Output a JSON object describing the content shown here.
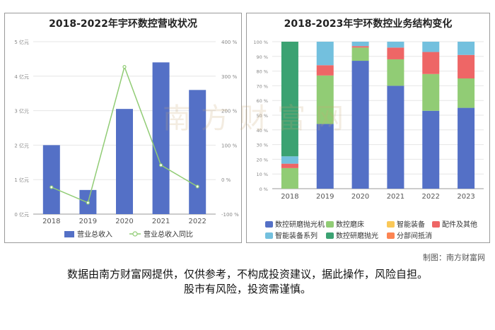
{
  "watermark": "南方财富网",
  "credit": "制图：南方财富网",
  "disclaimer_line1": "数据由南方财富网提供，仅供参考，不构成投资建议，据此操作，风险自担。",
  "disclaimer_line2": "股市有风险，投资需谨慎。",
  "chart_data": [
    {
      "type": "bar",
      "title": "2018-2022年宇环数控营收状况",
      "categories": [
        "2018",
        "2019",
        "2020",
        "2021",
        "2022"
      ],
      "left_axis_ticks": [
        "0 亿元",
        "1 亿元",
        "2 亿元",
        "3 亿元",
        "4 亿元",
        "5 亿元"
      ],
      "right_axis_ticks": [
        "-100 %",
        "0 %",
        "100 %",
        "200 %",
        "300 %",
        "400 %"
      ],
      "ylim": [
        0,
        5
      ],
      "y2lim": [
        -100,
        400
      ],
      "series": [
        {
          "name": "营业总收入",
          "type": "bar",
          "color": "#5470c6",
          "values": [
            2.0,
            0.7,
            3.05,
            4.4,
            3.6
          ]
        },
        {
          "name": "营业总收入同比",
          "type": "line",
          "axis": "right",
          "color": "#91cc75",
          "values": [
            -22,
            -67,
            327,
            42,
            -20
          ]
        }
      ],
      "legend_position": "bottom"
    },
    {
      "type": "bar",
      "stacked": true,
      "title": "2018-2023年宇环数控业务结构变化",
      "categories": [
        "2018",
        "2019",
        "2020",
        "2021",
        "2022",
        "2023"
      ],
      "y_axis_ticks": [
        "0 %",
        "10 %",
        "20 %",
        "30 %",
        "40 %",
        "50 %",
        "60 %",
        "70 %",
        "80 %",
        "90 %",
        "100 %"
      ],
      "ylim": [
        0,
        100
      ],
      "series": [
        {
          "name": "数控研磨抛光机",
          "color": "#5470c6",
          "values": [
            0,
            44,
            87,
            70,
            53,
            55
          ]
        },
        {
          "name": "数控磨床",
          "color": "#91cc75",
          "values": [
            14,
            33,
            9,
            18,
            25,
            20
          ]
        },
        {
          "name": "智能装备",
          "color": "#fac858",
          "values": [
            0,
            0,
            0,
            0,
            0,
            0
          ]
        },
        {
          "name": "配件及其他",
          "color": "#ee6666",
          "values": [
            3,
            7,
            1,
            8,
            15,
            16
          ]
        },
        {
          "name": "智能装备系列",
          "color": "#73c0de",
          "values": [
            5,
            16,
            3,
            4,
            7,
            9
          ]
        },
        {
          "name": "数控研磨抛光",
          "color": "#3ba272",
          "values": [
            78,
            0,
            0,
            0,
            0,
            0
          ]
        },
        {
          "name": "分部间抵消",
          "color": "#fc8452",
          "values": [
            0,
            0,
            0,
            0,
            0,
            0
          ]
        }
      ],
      "legend_position": "bottom"
    }
  ]
}
